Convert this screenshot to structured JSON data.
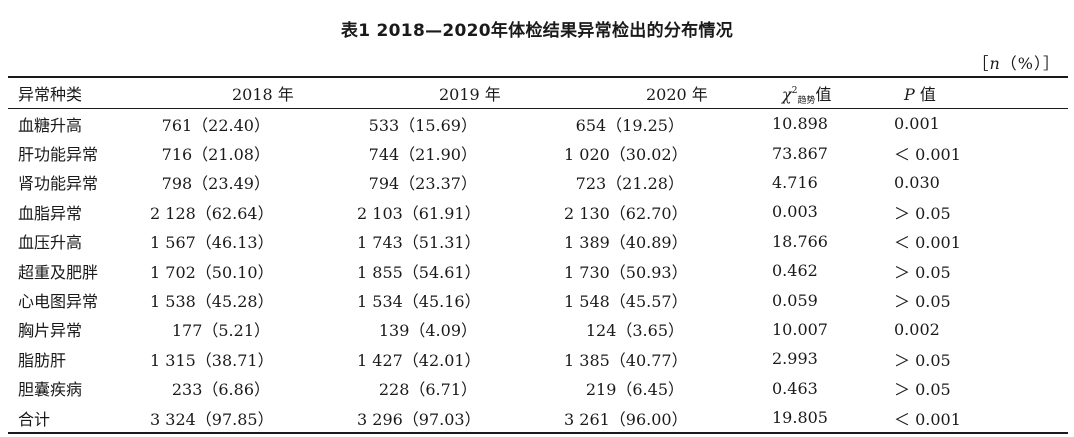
{
  "caption": "表1 2018—2020年体检结果异常检出的分布情况",
  "unit_note": {
    "open": "［",
    "n": "n",
    "rest": "（%）］"
  },
  "headers": {
    "category": "异常种类",
    "y2018": "2018 年",
    "y2019": "2019 年",
    "y2020": "2020 年",
    "chi_symbol": "χ",
    "chi_sup": "2",
    "chi_sub": "趋势",
    "chi_tail": "值",
    "p_symbol": "P",
    "p_tail": " 值"
  },
  "rows": [
    {
      "name": "血糖升高",
      "y2018": "761（22.40）",
      "y2019": "533（15.69）",
      "y2020": "654（19.25）",
      "chi2": "10.898",
      "p": "0.001"
    },
    {
      "name": "肝功能异常",
      "y2018": "716（21.08）",
      "y2019": "744（21.90）",
      "y2020": "1 020（30.02）",
      "chi2": "73.867",
      "p": "＜ 0.001"
    },
    {
      "name": "肾功能异常",
      "y2018": "798（23.49）",
      "y2019": "794（23.37）",
      "y2020": "723（21.28）",
      "chi2": "4.716",
      "p": "0.030"
    },
    {
      "name": "血脂异常",
      "y2018": "2 128（62.64）",
      "y2019": "2 103（61.91）",
      "y2020": "2 130（62.70）",
      "chi2": "0.003",
      "p": "＞ 0.05"
    },
    {
      "name": "血压升高",
      "y2018": "1 567（46.13）",
      "y2019": "1 743（51.31）",
      "y2020": "1 389（40.89）",
      "chi2": "18.766",
      "p": "＜ 0.001"
    },
    {
      "name": "超重及肥胖",
      "y2018": "1 702（50.10）",
      "y2019": "1 855（54.61）",
      "y2020": "1 730（50.93）",
      "chi2": "0.462",
      "p": "＞ 0.05"
    },
    {
      "name": "心电图异常",
      "y2018": "1 538（45.28）",
      "y2019": "1 534（45.16）",
      "y2020": "1 548（45.57）",
      "chi2": "0.059",
      "p": "＞ 0.05"
    },
    {
      "name": "胸片异常",
      "y2018": "177（5.21）",
      "y2019": "139（4.09）",
      "y2020": "124（3.65）",
      "chi2": "10.007",
      "p": "0.002"
    },
    {
      "name": "脂肪肝",
      "y2018": "1 315（38.71）",
      "y2019": "1 427（42.01）",
      "y2020": "1 385（40.77）",
      "chi2": "2.993",
      "p": "＞ 0.05"
    },
    {
      "name": "胆囊疾病",
      "y2018": "233（6.86）",
      "y2019": "228（6.71）",
      "y2020": "219（6.45）",
      "chi2": "0.463",
      "p": "＞ 0.05"
    },
    {
      "name": "合计",
      "y2018": "3 324（97.85）",
      "y2019": "3 296（97.03）",
      "y2020": "3 261（96.00）",
      "chi2": "19.805",
      "p": "＜ 0.001"
    }
  ]
}
